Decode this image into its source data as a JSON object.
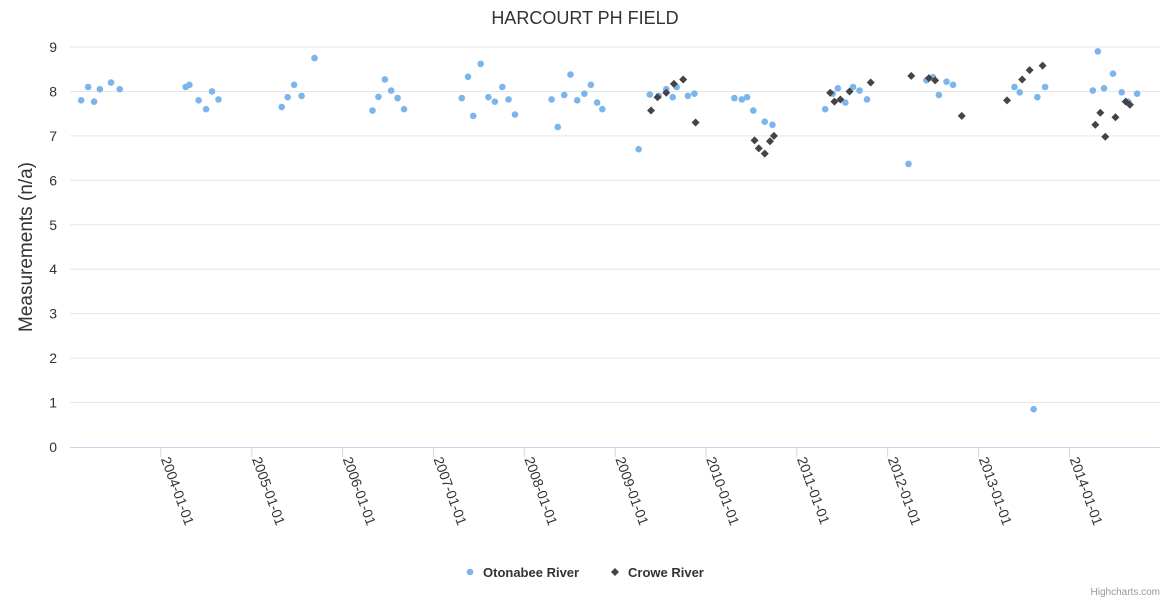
{
  "chart_data": {
    "type": "scatter",
    "title": "HARCOURT PH FIELD",
    "xlabel": "",
    "ylabel": "Measurements (n/a)",
    "ylim": [
      0,
      9
    ],
    "yticks": [
      "0",
      "1",
      "2",
      "3",
      "4",
      "5",
      "6",
      "7",
      "8",
      "9"
    ],
    "xlim": [
      "2003-01-01",
      "2014-12-31"
    ],
    "xticks": [
      "2004-01-01",
      "2005-01-01",
      "2006-01-01",
      "2007-01-01",
      "2008-01-01",
      "2009-01-01",
      "2010-01-01",
      "2011-01-01",
      "2012-01-01",
      "2013-01-01",
      "2014-01-01"
    ],
    "grid": true,
    "legend": "bottom-center",
    "credits": "Highcharts.com",
    "series": [
      {
        "name": "Otonabee River",
        "color": "#7cb5ec",
        "marker": "circle",
        "points": [
          [
            "2003-02-15",
            7.8
          ],
          [
            "2003-03-15",
            8.1
          ],
          [
            "2003-04-08",
            7.77
          ],
          [
            "2003-05-01",
            8.05
          ],
          [
            "2003-06-15",
            8.2
          ],
          [
            "2003-07-20",
            8.05
          ],
          [
            "2004-04-10",
            8.1
          ],
          [
            "2004-04-25",
            8.15
          ],
          [
            "2004-06-01",
            7.8
          ],
          [
            "2004-07-01",
            7.6
          ],
          [
            "2004-07-25",
            8.0
          ],
          [
            "2004-08-20",
            7.82
          ],
          [
            "2005-05-01",
            7.65
          ],
          [
            "2005-05-25",
            7.87
          ],
          [
            "2005-06-20",
            8.15
          ],
          [
            "2005-07-20",
            7.9
          ],
          [
            "2005-09-10",
            8.75
          ],
          [
            "2006-05-01",
            7.57
          ],
          [
            "2006-05-25",
            7.88
          ],
          [
            "2006-06-20",
            8.27
          ],
          [
            "2006-07-15",
            8.02
          ],
          [
            "2006-08-10",
            7.85
          ],
          [
            "2006-09-05",
            7.6
          ],
          [
            "2007-04-25",
            7.85
          ],
          [
            "2007-05-20",
            8.33
          ],
          [
            "2007-06-10",
            7.45
          ],
          [
            "2007-07-10",
            8.62
          ],
          [
            "2007-08-10",
            7.87
          ],
          [
            "2007-09-05",
            7.77
          ],
          [
            "2007-10-05",
            8.1
          ],
          [
            "2007-10-30",
            7.82
          ],
          [
            "2007-11-25",
            7.48
          ],
          [
            "2008-04-20",
            7.82
          ],
          [
            "2008-05-15",
            7.2
          ],
          [
            "2008-06-10",
            7.92
          ],
          [
            "2008-07-05",
            8.38
          ],
          [
            "2008-08-01",
            7.8
          ],
          [
            "2008-08-30",
            7.95
          ],
          [
            "2008-09-25",
            8.15
          ],
          [
            "2008-10-20",
            7.75
          ],
          [
            "2008-11-10",
            7.6
          ],
          [
            "2009-04-05",
            6.7
          ],
          [
            "2009-05-20",
            7.93
          ],
          [
            "2009-06-25",
            7.9
          ],
          [
            "2009-07-25",
            8.05
          ],
          [
            "2009-08-20",
            7.87
          ],
          [
            "2009-09-05",
            8.1
          ],
          [
            "2009-10-20",
            7.9
          ],
          [
            "2009-11-15",
            7.95
          ],
          [
            "2010-04-25",
            7.85
          ],
          [
            "2010-05-25",
            7.82
          ],
          [
            "2010-06-15",
            7.87
          ],
          [
            "2010-07-10",
            7.57
          ],
          [
            "2010-08-25",
            7.32
          ],
          [
            "2010-09-25",
            7.25
          ],
          [
            "2011-04-25",
            7.6
          ],
          [
            "2011-05-25",
            7.95
          ],
          [
            "2011-06-15",
            8.07
          ],
          [
            "2011-07-15",
            7.75
          ],
          [
            "2011-08-15",
            8.1
          ],
          [
            "2011-09-10",
            8.02
          ],
          [
            "2011-10-10",
            7.82
          ],
          [
            "2012-03-25",
            6.37
          ],
          [
            "2012-06-05",
            8.25
          ],
          [
            "2012-07-01",
            8.32
          ],
          [
            "2012-07-25",
            7.92
          ],
          [
            "2012-08-25",
            8.22
          ],
          [
            "2012-09-20",
            8.15
          ],
          [
            "2013-05-25",
            8.1
          ],
          [
            "2013-06-15",
            7.98
          ],
          [
            "2013-08-10",
            0.85
          ],
          [
            "2013-08-25",
            7.87
          ],
          [
            "2013-09-25",
            8.1
          ],
          [
            "2014-04-05",
            8.02
          ],
          [
            "2014-04-25",
            8.9
          ],
          [
            "2014-05-20",
            8.07
          ],
          [
            "2014-06-25",
            8.4
          ],
          [
            "2014-07-30",
            7.98
          ],
          [
            "2014-08-25",
            7.77
          ],
          [
            "2014-09-30",
            7.95
          ]
        ]
      },
      {
        "name": "Crowe River",
        "color": "#434348",
        "marker": "diamond",
        "points": [
          [
            "2009-05-25",
            7.57
          ],
          [
            "2009-06-20",
            7.87
          ],
          [
            "2009-07-25",
            7.97
          ],
          [
            "2009-08-25",
            8.17
          ],
          [
            "2009-10-01",
            8.27
          ],
          [
            "2009-11-20",
            7.3
          ],
          [
            "2010-07-15",
            6.9
          ],
          [
            "2010-08-01",
            6.72
          ],
          [
            "2010-08-25",
            6.6
          ],
          [
            "2010-09-15",
            6.88
          ],
          [
            "2010-10-01",
            7.0
          ],
          [
            "2011-05-15",
            7.97
          ],
          [
            "2011-06-01",
            7.77
          ],
          [
            "2011-06-25",
            7.82
          ],
          [
            "2011-08-01",
            8.0
          ],
          [
            "2011-10-25",
            8.2
          ],
          [
            "2012-04-05",
            8.35
          ],
          [
            "2012-06-15",
            8.3
          ],
          [
            "2012-07-10",
            8.25
          ],
          [
            "2012-10-25",
            7.45
          ],
          [
            "2013-04-25",
            7.8
          ],
          [
            "2013-06-25",
            8.27
          ],
          [
            "2013-07-25",
            8.48
          ],
          [
            "2013-09-15",
            8.58
          ],
          [
            "2014-04-15",
            7.25
          ],
          [
            "2014-05-05",
            7.52
          ],
          [
            "2014-05-25",
            6.98
          ],
          [
            "2014-07-05",
            7.42
          ],
          [
            "2014-08-15",
            7.77
          ],
          [
            "2014-09-01",
            7.7
          ]
        ]
      }
    ]
  }
}
